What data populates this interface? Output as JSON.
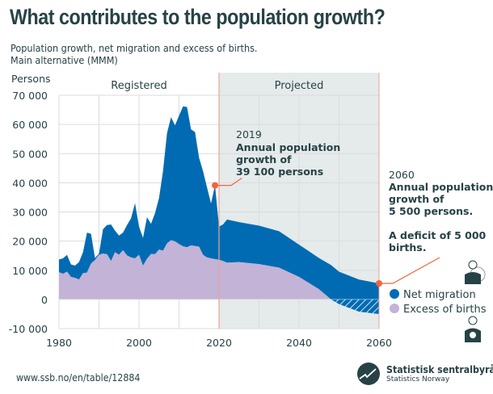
{
  "header": {
    "title": "What contributes to the population growth?",
    "subtitle_line1": "Population growth, net migration and excess of births.",
    "subtitle_line2": "Main alternative (MMM)"
  },
  "footer": {
    "source": "www.ssb.no/en/table/12884",
    "logo_name": "Statistisk sentralbyrå",
    "logo_subname": "Statistics Norway"
  },
  "colors": {
    "net_migration": "#006bb3",
    "excess_of_births": "#c2b3d7",
    "projected_bg": "#e5eaea",
    "annotation": "#f26539",
    "text": "#274247",
    "grid": "#d9dcdc"
  },
  "icons": [
    "person-globe-icon",
    "person-baby-icon",
    "ssb-logo-icon"
  ],
  "chart_data": {
    "type": "area",
    "stacked": true,
    "title": "What contributes to the population growth?",
    "ylabel": "Persons",
    "xlim": [
      1980,
      2060
    ],
    "ylim": [
      -10000,
      70000
    ],
    "x_ticks": [
      1980,
      2000,
      2020,
      2040,
      2060
    ],
    "x_tick_labels": [
      "1980",
      "2000",
      "2020",
      "2040",
      "2060"
    ],
    "y_ticks": [
      -10000,
      0,
      10000,
      20000,
      30000,
      40000,
      50000,
      60000,
      70000
    ],
    "y_tick_labels": [
      "-10 000",
      "0",
      "10 000",
      "20 000",
      "30 000",
      "40 000",
      "50 000",
      "60 000",
      "70 000"
    ],
    "grid": true,
    "legend_position": "right",
    "periods": [
      {
        "label": "Registered",
        "from": 1980,
        "to": 2020
      },
      {
        "label": "Projected",
        "from": 2020,
        "to": 2060
      }
    ],
    "x": [
      1980,
      1981,
      1982,
      1983,
      1984,
      1985,
      1986,
      1987,
      1988,
      1989,
      1990,
      1991,
      1992,
      1993,
      1994,
      1995,
      1996,
      1997,
      1998,
      1999,
      2000,
      2001,
      2002,
      2003,
      2004,
      2005,
      2006,
      2007,
      2008,
      2009,
      2010,
      2011,
      2012,
      2013,
      2014,
      2015,
      2016,
      2017,
      2018,
      2019,
      2020,
      2021,
      2022,
      2025,
      2030,
      2035,
      2040,
      2045,
      2048,
      2050,
      2055,
      2060
    ],
    "series": [
      {
        "name": "Net migration",
        "values": [
          4350,
          5300,
          5800,
          4300,
          4200,
          6000,
          7200,
          13700,
          10200,
          700,
          400,
          8400,
          10000,
          12500,
          7400,
          6600,
          6000,
          10400,
          13400,
          18900,
          9700,
          9500,
          14300,
          10300,
          14100,
          17600,
          27300,
          37800,
          42200,
          39800,
          44000,
          48000,
          48100,
          39800,
          39100,
          30500,
          28700,
          24000,
          18800,
          25300,
          11400,
          12500,
          14800,
          13700,
          13200,
          12500,
          11100,
          10700,
          11800,
          11100,
          11000,
          10500
        ],
        "color": "#006bb3"
      },
      {
        "name": "Excess of births",
        "values": [
          9350,
          8800,
          9500,
          7700,
          7400,
          6800,
          9000,
          9200,
          12300,
          13500,
          15300,
          15700,
          15500,
          13200,
          16200,
          15300,
          16900,
          15100,
          14400,
          14100,
          15300,
          11600,
          13900,
          15600,
          15500,
          17100,
          16700,
          19200,
          20300,
          19900,
          19000,
          18200,
          17900,
          18500,
          18300,
          18100,
          15300,
          14400,
          14100,
          13800,
          13600,
          13200,
          12600,
          12800,
          12100,
          10900,
          7700,
          3500,
          0,
          -1600,
          -4200,
          -5000
        ],
        "color": "#c2b3d7"
      }
    ],
    "annotations": [
      {
        "year_label": "2019",
        "text_lines": [
          "Annual population",
          "growth of",
          "39 100 persons"
        ],
        "x": 2019,
        "y": 39100
      },
      {
        "year_label": "2060",
        "text_lines": [
          "Annual population",
          "growth of",
          "5 500 persons."
        ],
        "text_lines2": [
          "A deficit of 5 000",
          "births."
        ],
        "x": 2060,
        "y": 5500
      }
    ]
  }
}
